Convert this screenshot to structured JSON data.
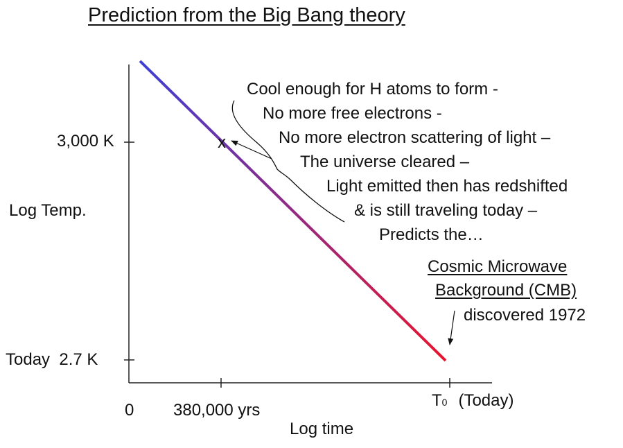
{
  "title": "Prediction from the Big Bang theory",
  "y_axis": {
    "label": "Log Temp.",
    "tick_upper": "3,000 K",
    "tick_lower": "Today  2.7 K"
  },
  "x_axis": {
    "label": "Log time",
    "tick_origin": "0",
    "tick_recombination": "380,000 yrs",
    "tick_today_main": "T",
    "tick_today_sub": "0",
    "tick_today_suffix": "(Today)"
  },
  "marker": "x",
  "annotation_lines": [
    "Cool enough for H atoms to form -",
    "No more free electrons -",
    "No more electron scattering of light –",
    "The universe cleared –",
    "Light emitted then has redshifted",
    "& is still traveling today –",
    "Predicts the…"
  ],
  "cmb": {
    "line1": "Cosmic Microwave",
    "line2": "Background (CMB)",
    "line3": "discovered 1972"
  },
  "colors": {
    "line_start": "#3d3fd6",
    "line_end": "#e8142e",
    "text": "#111111"
  }
}
